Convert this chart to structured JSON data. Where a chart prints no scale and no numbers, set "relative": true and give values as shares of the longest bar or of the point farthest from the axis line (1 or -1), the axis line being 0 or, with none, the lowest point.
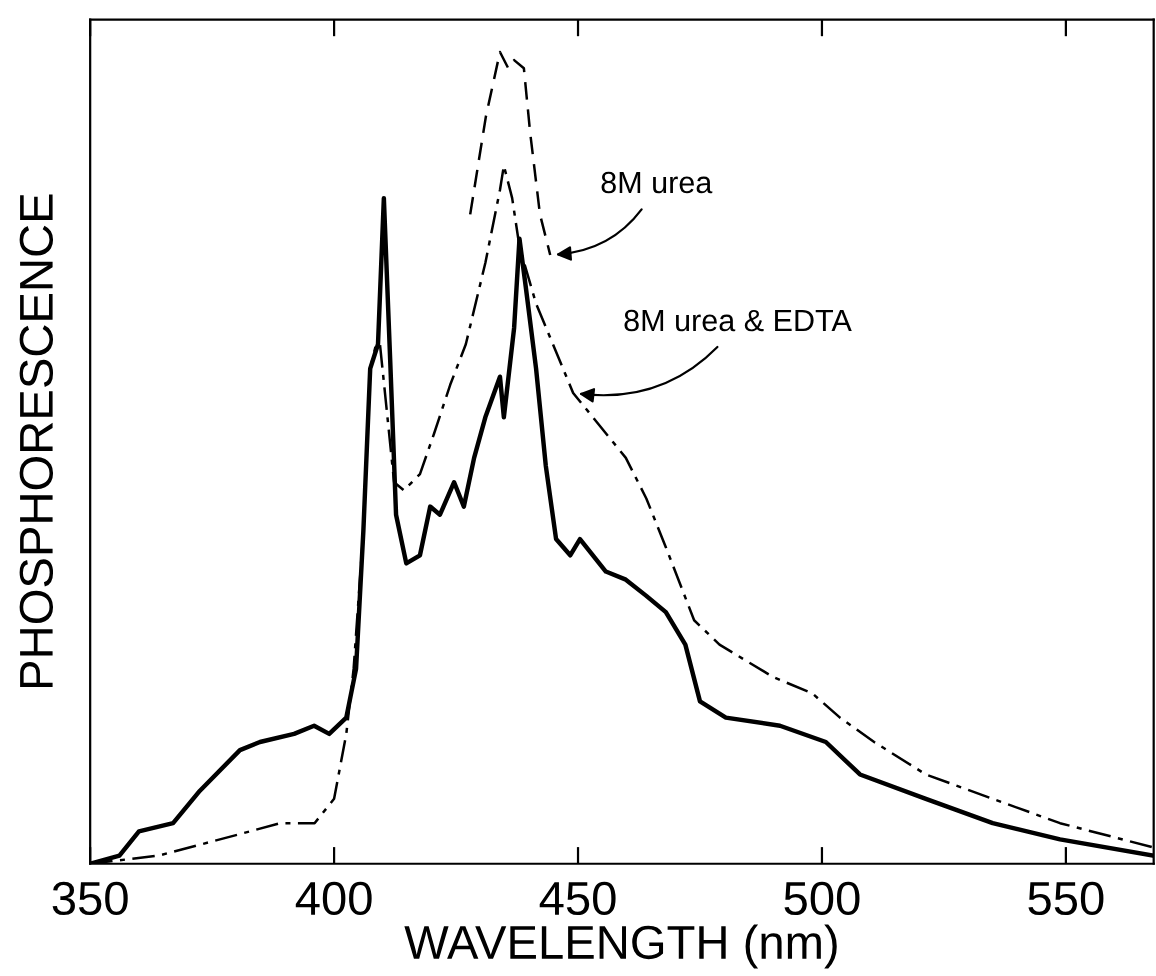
{
  "chart_data": {
    "type": "line",
    "xlabel": "WAVELENGTH (nm)",
    "ylabel": "PHOSPHORESCENCE",
    "relative": true,
    "xlim": [
      350,
      568
    ],
    "xticks": [
      350,
      400,
      450,
      500,
      550
    ],
    "grid": false,
    "legend": false,
    "marker": "none",
    "series": [
      {
        "name": "8M urea",
        "color": "#000000",
        "line_style": "dashed",
        "x": [
          427.9,
          431.1,
          434.0,
          435.7,
          436.9,
          438.9,
          440.2,
          442.2,
          444.3
        ],
        "values": [
          0.8,
          0.92,
          1.0,
          0.98,
          0.99,
          0.98,
          0.9,
          0.8,
          0.75
        ]
      },
      {
        "name": "8M urea & EDTA",
        "color": "#000000",
        "line_style": "dashdot",
        "x": [
          350,
          364,
          376.6,
          389,
          396,
          400,
          402.5,
          404,
          406,
          407.4,
          408.6,
          409.4,
          410.6,
          412.3,
          414.3,
          417.6,
          420.5,
          423.8,
          427,
          431,
          434,
          434.8,
          436.5,
          438,
          441.4,
          449,
          459.8,
          464,
          468,
          473.8,
          479,
          490,
          498,
          503.7,
          510.7,
          521.3,
          535,
          548.8,
          568
        ],
        "values": [
          0,
          0.01,
          0.03,
          0.05,
          0.05,
          0.08,
          0.16,
          0.24,
          0.41,
          0.61,
          0.64,
          0.64,
          0.57,
          0.47,
          0.46,
          0.48,
          0.53,
          0.59,
          0.64,
          0.74,
          0.83,
          0.86,
          0.82,
          0.76,
          0.69,
          0.58,
          0.5,
          0.45,
          0.39,
          0.3,
          0.27,
          0.23,
          0.21,
          0.18,
          0.15,
          0.11,
          0.08,
          0.05,
          0.02
        ]
      },
      {
        "color": "#000000",
        "line_style": "solid",
        "x": [
          350,
          356,
          360,
          367,
          372.5,
          380.7,
          384.8,
          391.8,
          395.9,
          399,
          402.5,
          404.5,
          406,
          407.4,
          409,
          410.2,
          411.5,
          412.7,
          414.8,
          417.6,
          419.7,
          421.7,
          424.6,
          426.6,
          428.7,
          431,
          434,
          434.8,
          436.9,
          438,
          439.3,
          441.4,
          443.4,
          445.5,
          448.4,
          450.4,
          455.7,
          459.8,
          464,
          468,
          472,
          475,
          480.3,
          491.4,
          500.8,
          507.8,
          521.3,
          535,
          548.8,
          568
        ],
        "values": [
          0,
          0.01,
          0.04,
          0.05,
          0.09,
          0.14,
          0.15,
          0.16,
          0.17,
          0.16,
          0.18,
          0.24,
          0.41,
          0.61,
          0.64,
          0.82,
          0.62,
          0.43,
          0.37,
          0.38,
          0.44,
          0.43,
          0.47,
          0.44,
          0.5,
          0.55,
          0.6,
          0.55,
          0.66,
          0.77,
          0.71,
          0.61,
          0.49,
          0.4,
          0.38,
          0.4,
          0.36,
          0.35,
          0.33,
          0.31,
          0.27,
          0.2,
          0.18,
          0.17,
          0.15,
          0.11,
          0.08,
          0.05,
          0.03,
          0.01
        ]
      }
    ]
  }
}
